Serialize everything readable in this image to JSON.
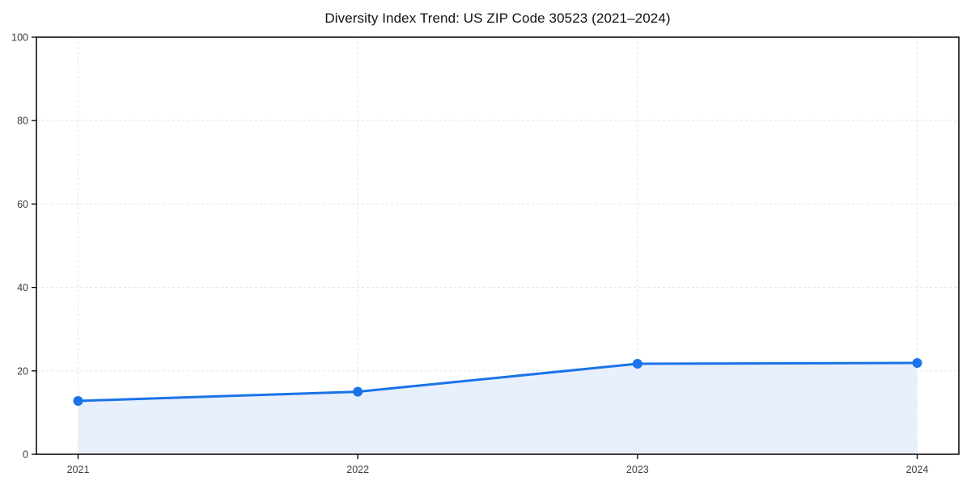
{
  "figure": {
    "background": "#ffffff"
  },
  "chart_data": {
    "type": "line",
    "title": "Diversity Index Trend: US ZIP Code 30523 (2021–2024)",
    "x": [
      2021,
      2022,
      2023,
      2024
    ],
    "x_tick_labels": [
      "2021",
      "2022",
      "2023",
      "2024"
    ],
    "series": [
      {
        "name": "Diversity Index",
        "values": [
          12.8,
          15.0,
          21.7,
          21.9
        ]
      }
    ],
    "xlabel": "",
    "ylabel": "",
    "ylim": [
      0,
      100
    ],
    "yticks": [
      0,
      20,
      40,
      60,
      80,
      100
    ],
    "grid": true,
    "grid_style": "dashed",
    "legend_position": "none",
    "area_fill": true,
    "marker": "circle",
    "colors": {
      "line": "#1a73e8",
      "marker": "#1a73e8",
      "fill": "#e8effd",
      "grid": "#e3e3e3",
      "spine": "#000000",
      "tick_label": "#3c3c3c",
      "title": "#111111"
    }
  }
}
